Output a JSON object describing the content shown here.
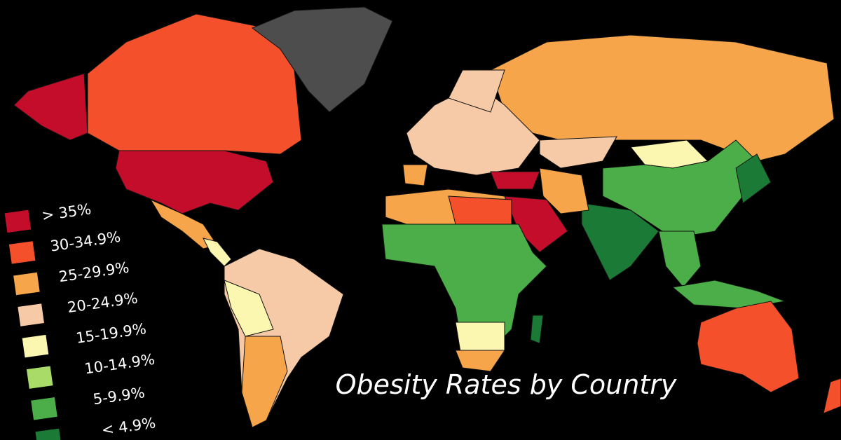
{
  "title": "Obesity Rates by Country",
  "legend": [
    {
      "label": "> 35%",
      "color": "#c30d2a"
    },
    {
      "label": "30-34.9%",
      "color": "#f4502b"
    },
    {
      "label": "25-29.9%",
      "color": "#f6a54b"
    },
    {
      "label": "20-24.9%",
      "color": "#f6caa6"
    },
    {
      "label": "15-19.9%",
      "color": "#fcf7b0"
    },
    {
      "label": "10-14.9%",
      "color": "#a8db68"
    },
    {
      "label": "5-9.9%",
      "color": "#4bae48"
    },
    {
      "label": "< 4.9%",
      "color": "#1b7a36"
    }
  ]
}
